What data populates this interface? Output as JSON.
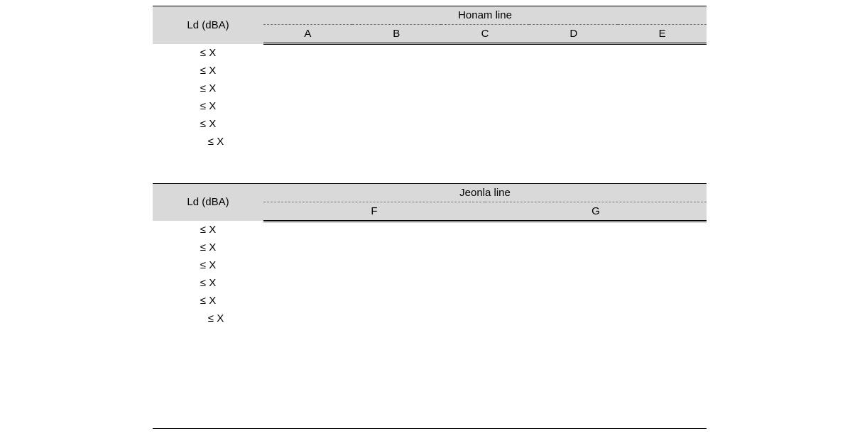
{
  "table1": {
    "rowHeader": "Ld (dBA)",
    "groupHeader": "Honam line",
    "columns": [
      "A",
      "B",
      "C",
      "D",
      "E"
    ],
    "rows": [
      {
        "label": "≤ X",
        "cells": [
          "",
          "",
          "",
          "",
          ""
        ]
      },
      {
        "label": "≤ X",
        "cells": [
          "",
          "",
          "",
          "",
          ""
        ]
      },
      {
        "label": "≤ X",
        "cells": [
          "",
          "",
          "",
          "",
          ""
        ]
      },
      {
        "label": "≤ X",
        "cells": [
          "",
          "",
          "",
          "",
          ""
        ]
      },
      {
        "label": "≤ X",
        "cells": [
          "",
          "",
          "",
          "",
          ""
        ]
      },
      {
        "label": "≤ X",
        "cells": [
          "",
          "",
          "",
          "",
          ""
        ],
        "indent": true
      }
    ],
    "colWidths": [
      "20%",
      "16%",
      "16%",
      "16%",
      "16%",
      "16%"
    ]
  },
  "table2": {
    "rowHeader": "Ld (dBA)",
    "groupHeader": "Jeonla line",
    "columns": [
      "F",
      "G"
    ],
    "rows": [
      {
        "label": "≤ X",
        "cells": [
          "",
          ""
        ]
      },
      {
        "label": "≤ X",
        "cells": [
          "",
          ""
        ]
      },
      {
        "label": "≤ X",
        "cells": [
          "",
          ""
        ]
      },
      {
        "label": "≤ X",
        "cells": [
          "",
          ""
        ]
      },
      {
        "label": "≤ X",
        "cells": [
          "",
          ""
        ]
      },
      {
        "label": "≤ X",
        "cells": [
          "",
          ""
        ],
        "indent": true
      }
    ],
    "colWidths": [
      "20%",
      "40%",
      "40%"
    ]
  },
  "style": {
    "headerBg": "#d9d9d9",
    "ruleColor": "#000000",
    "dashedColor": "#777777",
    "fontFamily": "Arial, Helvetica, sans-serif",
    "fontSizePx": 15
  }
}
